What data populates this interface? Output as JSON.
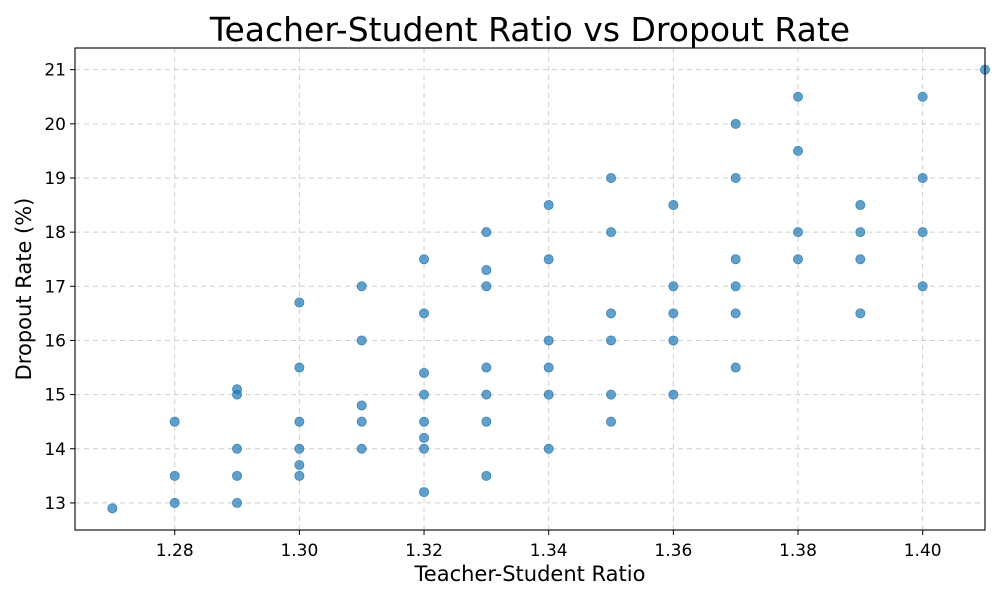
{
  "chart_data": {
    "type": "scatter",
    "title": "Teacher-Student Ratio vs Dropout Rate",
    "xlabel": "Teacher-Student Ratio",
    "ylabel": "Dropout Rate (%)",
    "xlim": [
      1.264,
      1.41
    ],
    "ylim": [
      12.5,
      21.4
    ],
    "xticks": [
      "1.28",
      "1.30",
      "1.32",
      "1.34",
      "1.36",
      "1.38",
      "1.40"
    ],
    "yticks": [
      "13",
      "14",
      "15",
      "16",
      "17",
      "18",
      "19",
      "20",
      "21"
    ],
    "grid": true,
    "marker_color": "#1f77b4",
    "points": [
      [
        1.27,
        12.9
      ],
      [
        1.28,
        13.0
      ],
      [
        1.28,
        13.5
      ],
      [
        1.28,
        14.5
      ],
      [
        1.29,
        13.0
      ],
      [
        1.29,
        13.5
      ],
      [
        1.29,
        14.0
      ],
      [
        1.29,
        15.0
      ],
      [
        1.29,
        15.1
      ],
      [
        1.3,
        13.5
      ],
      [
        1.3,
        13.7
      ],
      [
        1.3,
        14.0
      ],
      [
        1.3,
        14.5
      ],
      [
        1.3,
        15.5
      ],
      [
        1.3,
        16.7
      ],
      [
        1.31,
        14.0
      ],
      [
        1.31,
        14.5
      ],
      [
        1.31,
        14.8
      ],
      [
        1.31,
        16.0
      ],
      [
        1.31,
        17.0
      ],
      [
        1.32,
        13.2
      ],
      [
        1.32,
        14.0
      ],
      [
        1.32,
        14.2
      ],
      [
        1.32,
        14.5
      ],
      [
        1.32,
        15.0
      ],
      [
        1.32,
        15.4
      ],
      [
        1.32,
        16.5
      ],
      [
        1.32,
        17.5
      ],
      [
        1.33,
        13.5
      ],
      [
        1.33,
        14.5
      ],
      [
        1.33,
        15.0
      ],
      [
        1.33,
        15.5
      ],
      [
        1.33,
        17.0
      ],
      [
        1.33,
        17.3
      ],
      [
        1.33,
        18.0
      ],
      [
        1.34,
        14.0
      ],
      [
        1.34,
        15.0
      ],
      [
        1.34,
        15.5
      ],
      [
        1.34,
        16.0
      ],
      [
        1.34,
        17.5
      ],
      [
        1.34,
        18.5
      ],
      [
        1.35,
        14.5
      ],
      [
        1.35,
        15.0
      ],
      [
        1.35,
        16.0
      ],
      [
        1.35,
        16.5
      ],
      [
        1.35,
        18.0
      ],
      [
        1.35,
        19.0
      ],
      [
        1.36,
        15.0
      ],
      [
        1.36,
        16.0
      ],
      [
        1.36,
        16.5
      ],
      [
        1.36,
        17.0
      ],
      [
        1.36,
        18.5
      ],
      [
        1.37,
        15.5
      ],
      [
        1.37,
        16.5
      ],
      [
        1.37,
        17.0
      ],
      [
        1.37,
        17.5
      ],
      [
        1.37,
        19.0
      ],
      [
        1.37,
        20.0
      ],
      [
        1.38,
        17.5
      ],
      [
        1.38,
        18.0
      ],
      [
        1.38,
        19.5
      ],
      [
        1.38,
        20.5
      ],
      [
        1.39,
        16.5
      ],
      [
        1.39,
        17.5
      ],
      [
        1.39,
        18.0
      ],
      [
        1.39,
        18.5
      ],
      [
        1.4,
        17.0
      ],
      [
        1.4,
        18.0
      ],
      [
        1.4,
        19.0
      ],
      [
        1.4,
        20.5
      ],
      [
        1.41,
        21.0
      ]
    ]
  }
}
